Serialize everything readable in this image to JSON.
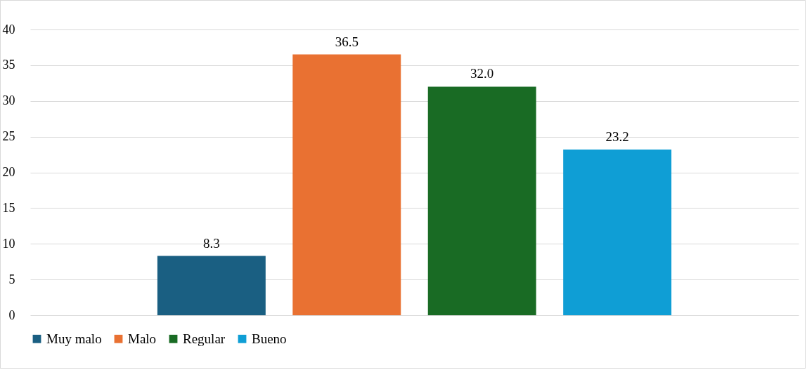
{
  "chart_data": {
    "type": "bar",
    "categories": [
      null
    ],
    "series": [
      {
        "name": "Muy malo",
        "color": "#1a5f82",
        "values": [
          8.3
        ],
        "value_labels": [
          "8.3"
        ]
      },
      {
        "name": "Malo",
        "color": "#e97132",
        "values": [
          36.5
        ],
        "value_labels": [
          "36.5"
        ]
      },
      {
        "name": "Regular",
        "color": "#196b24",
        "values": [
          32.0
        ],
        "value_labels": [
          "32.0"
        ]
      },
      {
        "name": "Bueno",
        "color": "#0f9ed5",
        "values": [
          23.2
        ],
        "value_labels": [
          "23.2"
        ]
      }
    ],
    "ylim": [
      0,
      40
    ],
    "yticks": [
      0,
      5,
      10,
      15,
      20,
      25,
      30,
      35,
      40
    ],
    "grid": "y",
    "legend": "bottom"
  }
}
